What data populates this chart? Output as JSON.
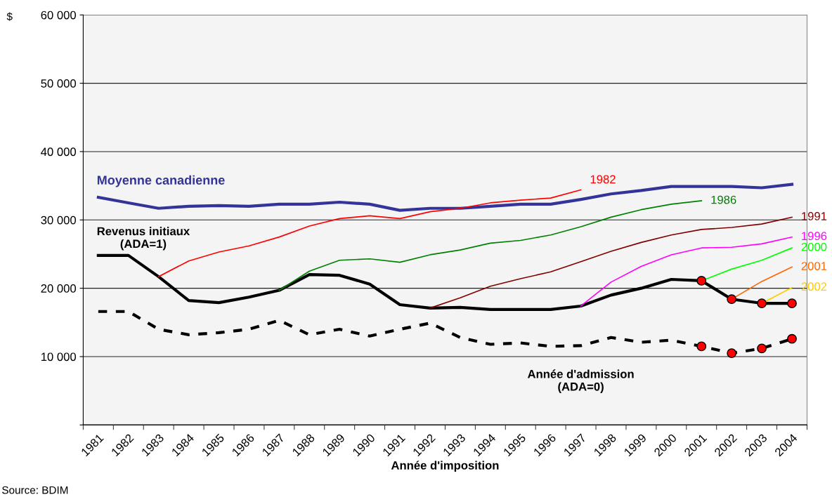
{
  "chart_data": {
    "type": "line",
    "ylabel": "$",
    "xlabel": "Année d'imposition",
    "categories": [
      "1981",
      "1982",
      "1983",
      "1984",
      "1985",
      "1986",
      "1987",
      "1988",
      "1989",
      "1990",
      "1991",
      "1992",
      "1993",
      "1994",
      "1995",
      "1996",
      "1997",
      "1998",
      "1999",
      "2000",
      "2001",
      "2002",
      "2003",
      "2004"
    ],
    "ylim": [
      0,
      60000
    ],
    "yticks": [
      {
        "value": 0,
        "label": null
      },
      {
        "value": 10000,
        "label": "10 000"
      },
      {
        "value": 20000,
        "label": "20 000"
      },
      {
        "value": 30000,
        "label": "30 000"
      },
      {
        "value": 40000,
        "label": "40 000"
      },
      {
        "value": 50000,
        "label": "50 000"
      },
      {
        "value": 60000,
        "label": "60 000"
      }
    ],
    "grid": "y",
    "legend": false,
    "annotations": [
      "Source: BDIM"
    ],
    "series": [
      {
        "name": "Moyenne canadienne",
        "color": "#333399",
        "values": [
          33300,
          32500,
          31700,
          32000,
          32100,
          32000,
          32300,
          32300,
          32600,
          32300,
          31400,
          31700,
          31700,
          32000,
          32300,
          32300,
          33000,
          33800,
          34300,
          34900,
          34900,
          34900,
          34700,
          35200
        ]
      },
      {
        "name": "Revenus initiaux\n(ADA=1)",
        "color": "#000000",
        "values": [
          24800,
          24800,
          21700,
          18200,
          17900,
          18700,
          19700,
          22000,
          21900,
          20600,
          17600,
          17100,
          17200,
          16900,
          16900,
          16900,
          17400,
          19000,
          20000,
          21300,
          21100,
          18400,
          17800,
          17800
        ]
      },
      {
        "name": "Année d'admission\n(ADA=0)",
        "color": "#000000",
        "line_style": "dashed",
        "values": [
          16600,
          16600,
          14000,
          13200,
          13500,
          14000,
          15300,
          13200,
          14000,
          13000,
          14000,
          14900,
          12800,
          11800,
          12000,
          11500,
          11600,
          12800,
          12100,
          12400,
          11500,
          10500,
          11200,
          12600
        ]
      },
      {
        "name": "1982",
        "color": "#ff0000",
        "values": [
          null,
          null,
          21700,
          24000,
          25300,
          26200,
          27500,
          29100,
          30200,
          30600,
          30200,
          31200,
          31700,
          32500,
          32900,
          33200,
          34400,
          null,
          null,
          null,
          null,
          null,
          null,
          null
        ]
      },
      {
        "name": "1986",
        "color": "#008000",
        "values": [
          null,
          null,
          null,
          null,
          null,
          null,
          19700,
          22500,
          24100,
          24300,
          23800,
          24900,
          25600,
          26600,
          27000,
          27800,
          29000,
          30400,
          31500,
          32300,
          32800,
          null,
          null,
          null
        ]
      },
      {
        "name": "1991",
        "color": "#800000",
        "values": [
          null,
          null,
          null,
          null,
          null,
          null,
          null,
          null,
          null,
          null,
          null,
          17100,
          18600,
          20300,
          21400,
          22400,
          23900,
          25400,
          26700,
          27800,
          28600,
          28900,
          29400,
          30400
        ]
      },
      {
        "name": "1996",
        "color": "#ff00ff",
        "values": [
          null,
          null,
          null,
          null,
          null,
          null,
          null,
          null,
          null,
          null,
          null,
          null,
          null,
          null,
          null,
          null,
          17400,
          20900,
          23200,
          24900,
          25900,
          26000,
          26500,
          27500
        ]
      },
      {
        "name": "2000",
        "color": "#00ff00",
        "values": [
          null,
          null,
          null,
          null,
          null,
          null,
          null,
          null,
          null,
          null,
          null,
          null,
          null,
          null,
          null,
          null,
          null,
          null,
          null,
          null,
          21100,
          22800,
          24100,
          25900
        ]
      },
      {
        "name": "2001",
        "color": "#ff6600",
        "values": [
          null,
          null,
          null,
          null,
          null,
          null,
          null,
          null,
          null,
          null,
          null,
          null,
          null,
          null,
          null,
          null,
          null,
          null,
          null,
          null,
          null,
          18400,
          21000,
          23100
        ]
      },
      {
        "name": "2002",
        "color": "#ffcc00",
        "values": [
          null,
          null,
          null,
          null,
          null,
          null,
          null,
          null,
          null,
          null,
          null,
          null,
          null,
          null,
          null,
          null,
          null,
          null,
          null,
          null,
          null,
          null,
          17800,
          20100
        ]
      },
      {
        "type": "scatter",
        "color": "#ff0000",
        "marker": "circle",
        "values": [
          null,
          null,
          null,
          null,
          null,
          null,
          null,
          null,
          null,
          null,
          null,
          null,
          null,
          null,
          null,
          null,
          null,
          null,
          null,
          null,
          21100,
          18400,
          17800,
          17800
        ]
      },
      {
        "type": "scatter",
        "color": "#ff0000",
        "marker": "circle",
        "values": [
          null,
          null,
          null,
          null,
          null,
          null,
          null,
          null,
          null,
          null,
          null,
          null,
          null,
          null,
          null,
          null,
          null,
          null,
          null,
          null,
          11500,
          10500,
          11200,
          12600
        ]
      }
    ]
  }
}
